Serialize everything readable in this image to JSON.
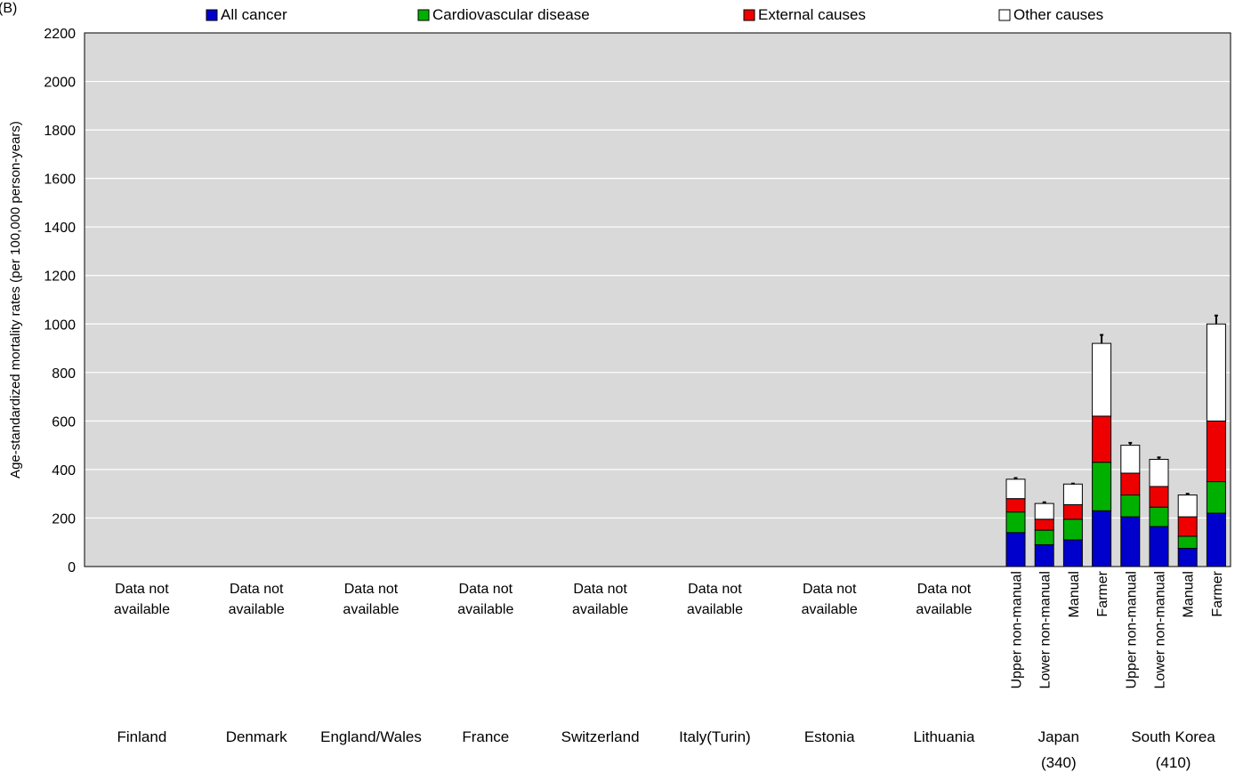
{
  "chart_data": {
    "type": "bar",
    "stacked": true,
    "ylabel": "Age-standardized mortality rates (per 100,000 person-years)",
    "ylim": [
      0,
      2200
    ],
    "yticks": [
      "0",
      "200",
      "400",
      "600",
      "800",
      "1000",
      "1200",
      "1400",
      "1600",
      "1800",
      "2000",
      "2200"
    ],
    "grid": true,
    "legend_position": "top",
    "series": [
      {
        "name": "All cancer",
        "color": "#0000cc"
      },
      {
        "name": "Cardiovascular disease",
        "color": "#00b000"
      },
      {
        "name": "External causes",
        "color": "#ee0000"
      },
      {
        "name": "Other causes",
        "color": "#ffffff"
      }
    ],
    "countries": [
      {
        "name": "Finland",
        "note_lines": [
          "Data not",
          "available"
        ],
        "bars": []
      },
      {
        "name": "Denmark",
        "note_lines": [
          "Data not",
          "available"
        ],
        "bars": []
      },
      {
        "name": "England/Wales",
        "note_lines": [
          "Data not",
          "available"
        ],
        "bars": []
      },
      {
        "name": "France",
        "note_lines": [
          "Data not",
          "available"
        ],
        "bars": []
      },
      {
        "name": "Switzerland",
        "note_lines": [
          "Data not",
          "available"
        ],
        "bars": []
      },
      {
        "name": "Italy(Turin)",
        "note_lines": [
          "Data not",
          "available"
        ],
        "bars": []
      },
      {
        "name": "Estonia",
        "note_lines": [
          "Data not",
          "available"
        ],
        "bars": []
      },
      {
        "name": "Lithuania",
        "note_lines": [
          "Data not",
          "available"
        ],
        "bars": []
      },
      {
        "name": "Japan",
        "n_label": "(340)",
        "bars": [
          {
            "category": "Upper non-manual",
            "values": [
              140,
              85,
              55,
              80
            ],
            "error_high": 365
          },
          {
            "category": "Lower non-manual",
            "values": [
              90,
              60,
              45,
              65
            ],
            "error_high": 265
          },
          {
            "category": "Manual",
            "values": [
              110,
              85,
              60,
              85
            ],
            "error_high": 342
          },
          {
            "category": "Farmer",
            "values": [
              230,
              200,
              190,
              300
            ],
            "error_high": 955
          }
        ]
      },
      {
        "name": "South Korea",
        "n_label": "(410)",
        "bars": [
          {
            "category": "Upper non-manual",
            "values": [
              205,
              90,
              90,
              115
            ],
            "error_high": 510
          },
          {
            "category": "Lower non-manual",
            "values": [
              165,
              80,
              85,
              112
            ],
            "error_high": 450
          },
          {
            "category": "Manual",
            "values": [
              75,
              50,
              80,
              90
            ],
            "error_high": 300
          },
          {
            "category": "Farmer",
            "values": [
              220,
              130,
              250,
              400
            ],
            "error_high": 1035
          }
        ]
      }
    ]
  }
}
